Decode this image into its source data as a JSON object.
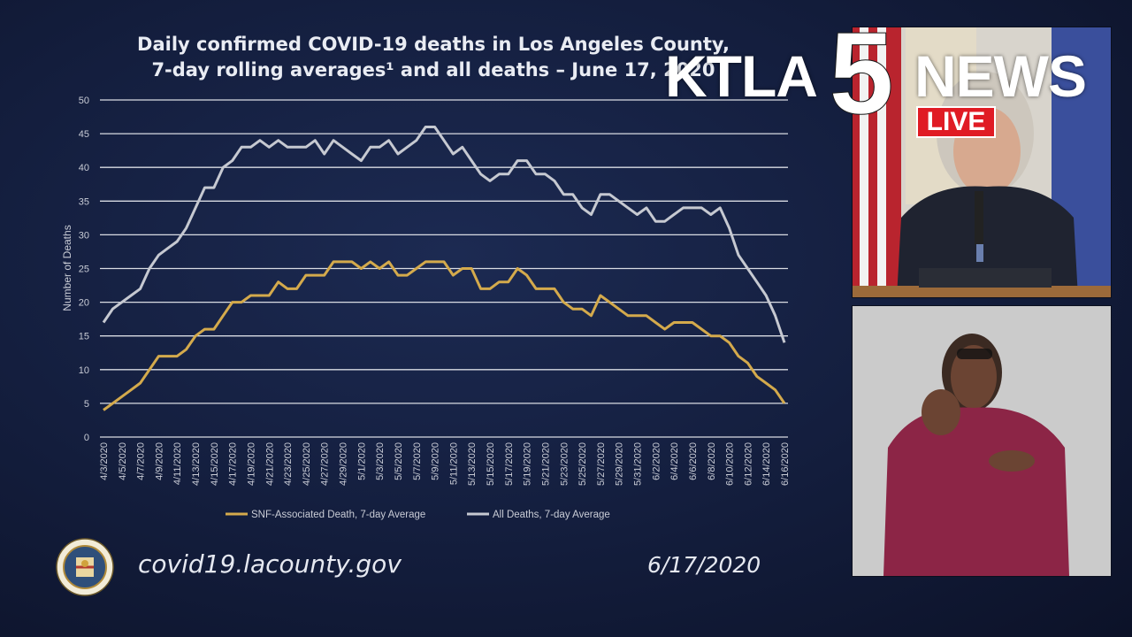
{
  "chart_data": {
    "type": "line",
    "title": "Daily confirmed COVID-19 deaths in Los Angeles County,\n7-day rolling averages¹ and all deaths – June 17, 2020",
    "xlabel": "",
    "ylabel": "Number of Deaths",
    "ylim": [
      0,
      50
    ],
    "yticks": [
      0,
      5,
      10,
      15,
      20,
      25,
      30,
      35,
      40,
      45,
      50
    ],
    "grid": true,
    "legend_position": "bottom",
    "x_tick_labels": [
      "4/3/2020",
      "4/5/2020",
      "4/7/2020",
      "4/9/2020",
      "4/11/2020",
      "4/13/2020",
      "4/15/2020",
      "4/17/2020",
      "4/19/2020",
      "4/21/2020",
      "4/23/2020",
      "4/25/2020",
      "4/27/2020",
      "4/29/2020",
      "5/1/2020",
      "5/3/2020",
      "5/5/2020",
      "5/7/2020",
      "5/9/2020",
      "5/11/2020",
      "5/13/2020",
      "5/15/2020",
      "5/17/2020",
      "5/19/2020",
      "5/21/2020",
      "5/23/2020",
      "5/25/2020",
      "5/27/2020",
      "5/29/2020",
      "5/31/2020",
      "6/2/2020",
      "6/4/2020",
      "6/6/2020",
      "6/8/2020",
      "6/10/2020",
      "6/12/2020",
      "6/14/2020",
      "6/16/2020"
    ],
    "series": [
      {
        "name": "SNF-Associated Death, 7-day Average",
        "color": "#d4aa4c",
        "values": [
          4,
          5,
          6,
          7,
          8,
          10,
          12,
          12,
          12,
          13,
          15,
          16,
          16,
          18,
          20,
          20,
          21,
          21,
          21,
          23,
          22,
          22,
          24,
          24,
          24,
          26,
          26,
          26,
          25,
          26,
          25,
          26,
          24,
          24,
          25,
          26,
          26,
          26,
          24,
          25,
          25,
          22,
          22,
          23,
          23,
          25,
          24,
          22,
          22,
          22,
          20,
          19,
          19,
          18,
          21,
          20,
          19,
          18,
          18,
          18,
          17,
          16,
          17,
          17,
          17,
          16,
          15,
          15,
          14,
          12,
          11,
          9,
          8,
          7,
          5
        ]
      },
      {
        "name": "All Deaths, 7-day Average",
        "color": "#c6c9d1",
        "values": [
          17,
          19,
          20,
          21,
          22,
          25,
          27,
          28,
          29,
          31,
          34,
          37,
          37,
          40,
          41,
          43,
          43,
          44,
          43,
          44,
          43,
          43,
          43,
          44,
          42,
          44,
          43,
          42,
          41,
          43,
          43,
          44,
          42,
          43,
          44,
          46,
          46,
          44,
          42,
          43,
          41,
          39,
          38,
          39,
          39,
          41,
          41,
          39,
          39,
          38,
          36,
          36,
          34,
          33,
          36,
          36,
          35,
          34,
          33,
          34,
          32,
          32,
          33,
          34,
          34,
          34,
          33,
          34,
          31,
          27,
          25,
          23,
          21,
          18,
          14
        ]
      }
    ]
  },
  "footer": {
    "url": "covid19.lacounty.gov",
    "date": "6/17/2020"
  },
  "seal": {
    "text_top": "COUNTY OF LOS ANGELES",
    "text_bottom": "CALIFORNIA"
  },
  "logo": {
    "station": "KTLA",
    "channel": "5",
    "news": "NEWS",
    "live": "LIVE"
  },
  "colors": {
    "background": "#131d3c",
    "grid": "#d9dce3",
    "axis_text": "#c9ccd6",
    "live_red": "#e01b24"
  },
  "video": {
    "speaker_label": "speaker-video-feed",
    "interpreter_label": "sign-language-interpreter-feed"
  }
}
